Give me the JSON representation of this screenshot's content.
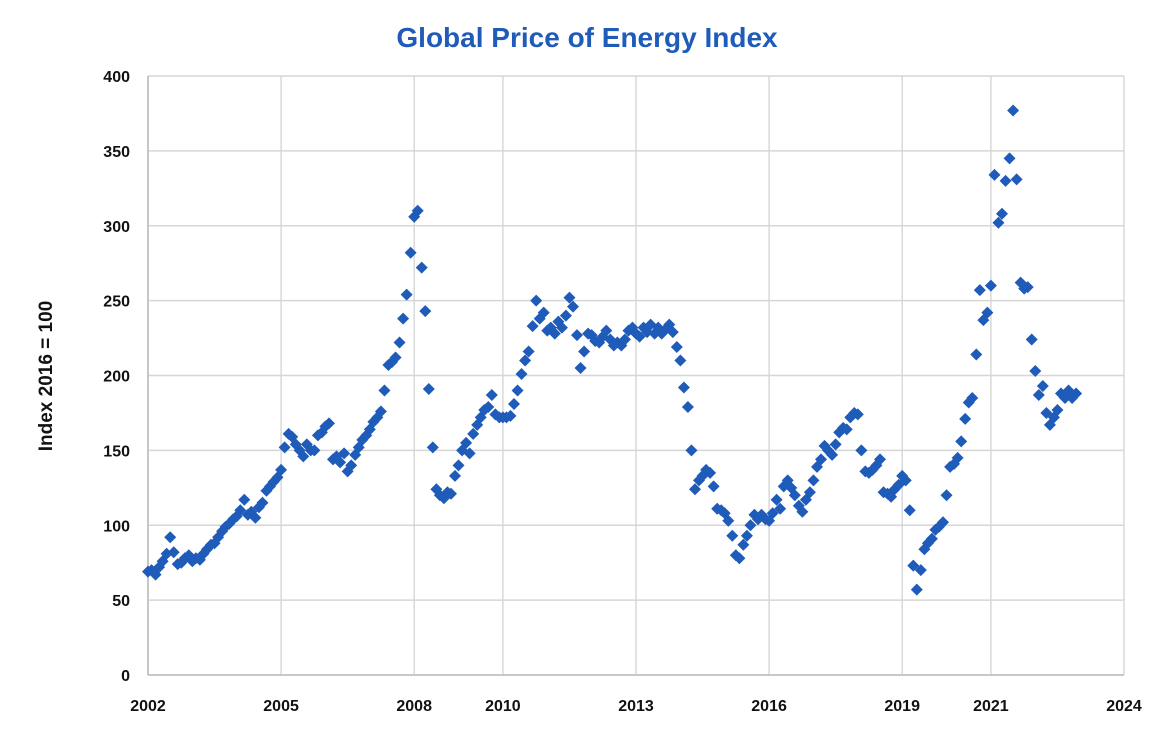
{
  "chart_data": {
    "type": "scatter",
    "title": "Global Price of Energy Index",
    "xlabel": "",
    "ylabel": "Index 2016 = 100",
    "xlim": [
      2002,
      2024
    ],
    "ylim": [
      0,
      400
    ],
    "x_ticks": [
      "2002",
      "2005",
      "2008",
      "2010",
      "2013",
      "2016",
      "2019",
      "2021",
      "2024"
    ],
    "y_ticks": [
      "0",
      "50",
      "100",
      "150",
      "200",
      "250",
      "300",
      "350",
      "400"
    ],
    "grid": true,
    "marker_color": "#1f5bb8",
    "series": [
      {
        "name": "Global Price of Energy Index",
        "x": [
          2002.0,
          2002.08,
          2002.17,
          2002.25,
          2002.33,
          2002.42,
          2002.5,
          2002.58,
          2002.67,
          2002.75,
          2002.83,
          2002.92,
          2003.0,
          2003.08,
          2003.17,
          2003.25,
          2003.33,
          2003.42,
          2003.5,
          2003.58,
          2003.67,
          2003.75,
          2003.83,
          2003.92,
          2004.0,
          2004.08,
          2004.17,
          2004.25,
          2004.33,
          2004.42,
          2004.5,
          2004.58,
          2004.67,
          2004.75,
          2004.83,
          2004.92,
          2005.0,
          2005.08,
          2005.17,
          2005.25,
          2005.33,
          2005.42,
          2005.5,
          2005.58,
          2005.67,
          2005.75,
          2005.83,
          2005.92,
          2006.0,
          2006.08,
          2006.17,
          2006.25,
          2006.33,
          2006.42,
          2006.5,
          2006.58,
          2006.67,
          2006.75,
          2006.83,
          2006.92,
          2007.0,
          2007.08,
          2007.17,
          2007.25,
          2007.33,
          2007.42,
          2007.5,
          2007.58,
          2007.67,
          2007.75,
          2007.83,
          2007.92,
          2008.0,
          2008.08,
          2008.17,
          2008.25,
          2008.33,
          2008.42,
          2008.5,
          2008.58,
          2008.67,
          2008.75,
          2008.83,
          2008.92,
          2009.0,
          2009.08,
          2009.17,
          2009.25,
          2009.33,
          2009.42,
          2009.5,
          2009.58,
          2009.67,
          2009.75,
          2009.83,
          2009.92,
          2010.0,
          2010.08,
          2010.17,
          2010.25,
          2010.33,
          2010.42,
          2010.5,
          2010.58,
          2010.67,
          2010.75,
          2010.83,
          2010.92,
          2011.0,
          2011.08,
          2011.17,
          2011.25,
          2011.33,
          2011.42,
          2011.5,
          2011.58,
          2011.67,
          2011.75,
          2011.83,
          2011.92,
          2012.0,
          2012.08,
          2012.17,
          2012.25,
          2012.33,
          2012.42,
          2012.5,
          2012.58,
          2012.67,
          2012.75,
          2012.83,
          2012.92,
          2013.0,
          2013.08,
          2013.17,
          2013.25,
          2013.33,
          2013.42,
          2013.5,
          2013.58,
          2013.67,
          2013.75,
          2013.83,
          2013.92,
          2014.0,
          2014.08,
          2014.17,
          2014.25,
          2014.33,
          2014.42,
          2014.5,
          2014.58,
          2014.67,
          2014.75,
          2014.83,
          2014.92,
          2015.0,
          2015.08,
          2015.17,
          2015.25,
          2015.33,
          2015.42,
          2015.5,
          2015.58,
          2015.67,
          2015.75,
          2015.83,
          2015.92,
          2016.0,
          2016.08,
          2016.17,
          2016.25,
          2016.33,
          2016.42,
          2016.5,
          2016.58,
          2016.67,
          2016.75,
          2016.83,
          2016.92,
          2017.0,
          2017.08,
          2017.17,
          2017.25,
          2017.33,
          2017.42,
          2017.5,
          2017.58,
          2017.67,
          2017.75,
          2017.83,
          2017.92,
          2018.0,
          2018.08,
          2018.17,
          2018.25,
          2018.33,
          2018.42,
          2018.5,
          2018.58,
          2018.67,
          2018.75,
          2018.83,
          2018.92,
          2019.0,
          2019.08,
          2019.17,
          2019.25,
          2019.33,
          2019.42,
          2019.5,
          2019.58,
          2019.67,
          2019.75,
          2019.83,
          2019.92,
          2020.0,
          2020.08,
          2020.17,
          2020.25,
          2020.33,
          2020.42,
          2020.5,
          2020.58,
          2020.67,
          2020.75,
          2020.83,
          2020.92,
          2021.0,
          2021.08,
          2021.17,
          2021.25,
          2021.33,
          2021.42,
          2021.5,
          2021.58,
          2021.67,
          2021.75,
          2021.83,
          2021.92,
          2022.0,
          2022.08,
          2022.17,
          2022.25,
          2022.33,
          2022.42,
          2022.5,
          2022.58,
          2022.67,
          2022.75,
          2022.83,
          2022.92
        ],
        "y": [
          69,
          70,
          67,
          72,
          76,
          81,
          92,
          82,
          74,
          75,
          78,
          80,
          76,
          78,
          77,
          81,
          84,
          87,
          88,
          92,
          96,
          99,
          101,
          104,
          106,
          110,
          117,
          107,
          109,
          105,
          112,
          115,
          123,
          126,
          129,
          132,
          137,
          152,
          161,
          159,
          154,
          150,
          146,
          154,
          150,
          150,
          160,
          162,
          166,
          168,
          144,
          146,
          142,
          148,
          136,
          140,
          147,
          152,
          157,
          160,
          164,
          169,
          172,
          176,
          190,
          207,
          209,
          212,
          222,
          238,
          254,
          282,
          306,
          310,
          272,
          243,
          191,
          152,
          124,
          120,
          118,
          122,
          121,
          133,
          140,
          150,
          155,
          148,
          161,
          167,
          172,
          177,
          179,
          187,
          174,
          172,
          172,
          172,
          173,
          181,
          190,
          201,
          210,
          216,
          233,
          250,
          238,
          242,
          230,
          232,
          228,
          236,
          232,
          240,
          252,
          246,
          227,
          205,
          216,
          228,
          227,
          223,
          222,
          226,
          230,
          224,
          220,
          222,
          220,
          224,
          230,
          232,
          228,
          226,
          232,
          229,
          234,
          228,
          232,
          228,
          231,
          234,
          229,
          219,
          210,
          192,
          179,
          150,
          124,
          130,
          133,
          137,
          135,
          126,
          111,
          110,
          108,
          103,
          93,
          80,
          78,
          87,
          93,
          100,
          107,
          104,
          107,
          104,
          103,
          108,
          117,
          111,
          126,
          130,
          125,
          120,
          113,
          109,
          117,
          122,
          130,
          139,
          144,
          153,
          150,
          147,
          154,
          162,
          165,
          164,
          172,
          175,
          174,
          150,
          136,
          135,
          137,
          140,
          144,
          122,
          121,
          119,
          124,
          127,
          133,
          130,
          110,
          73,
          57,
          70,
          84,
          88,
          91,
          97,
          99,
          102,
          120,
          139,
          141,
          145,
          156,
          171,
          182,
          185,
          214,
          257,
          237,
          242,
          260,
          334,
          302,
          308,
          330,
          345,
          377,
          331,
          262,
          258,
          259,
          224,
          203,
          187,
          193,
          175,
          167,
          172,
          177,
          188,
          185,
          190,
          185,
          188
        ]
      }
    ]
  }
}
